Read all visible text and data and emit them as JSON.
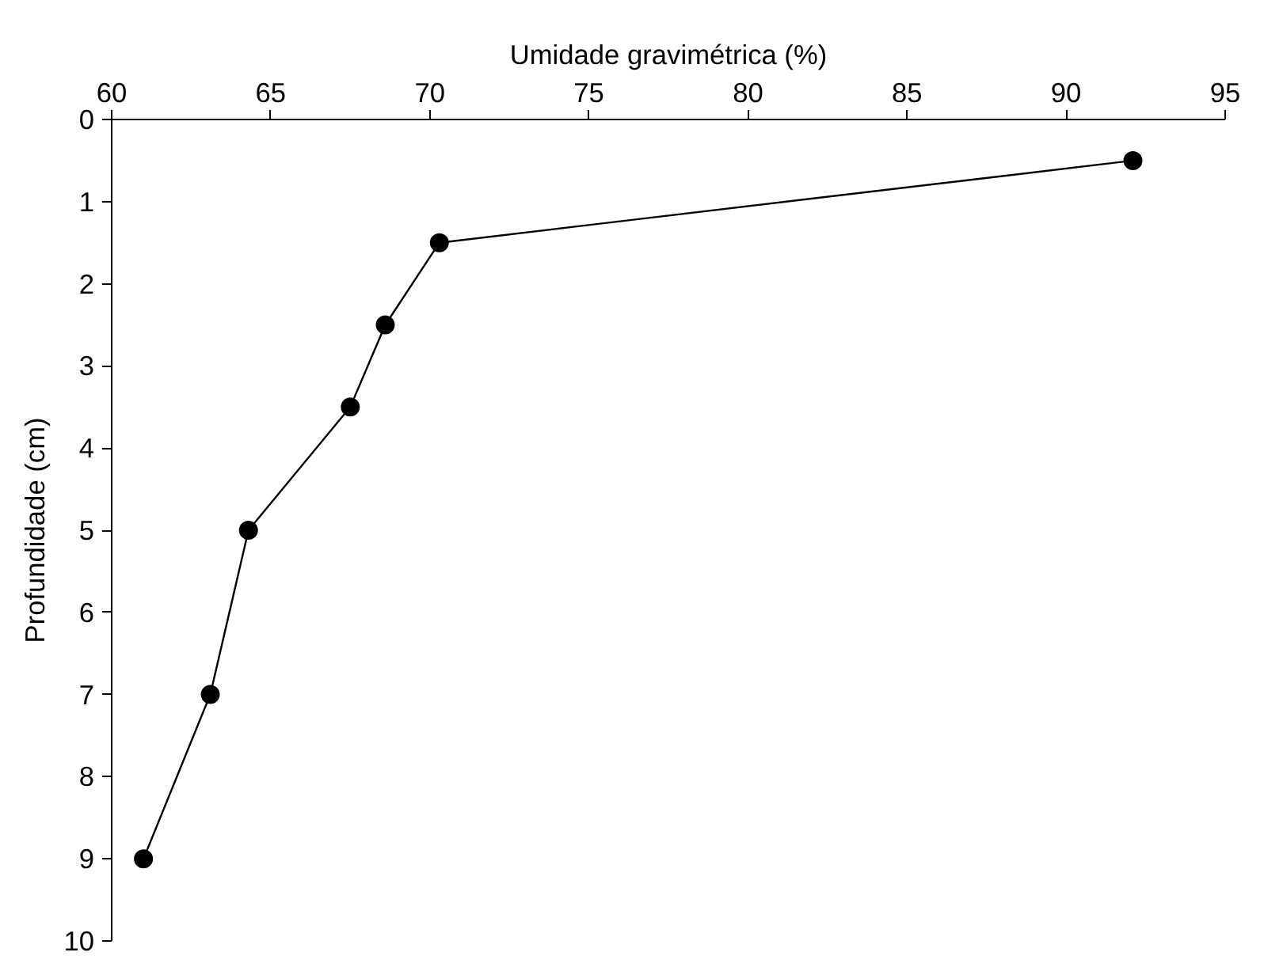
{
  "chart_data": {
    "type": "line",
    "xlabel": "Umidade gravimétrica (%)",
    "ylabel": "Profundidade (cm)",
    "x": [
      92.1,
      70.3,
      68.6,
      67.5,
      64.3,
      63.1,
      61.0
    ],
    "series": [
      {
        "color": "#000000",
        "values": [
          0.5,
          1.5,
          2.5,
          3.5,
          5,
          7,
          9
        ]
      }
    ],
    "xlim": [
      60,
      95
    ],
    "xticks": [
      60,
      65,
      70,
      75,
      80,
      85,
      90,
      95
    ],
    "ylim": [
      10,
      0
    ],
    "yticks": [
      0,
      1,
      2,
      3,
      4,
      5,
      6,
      7,
      8,
      9,
      10
    ],
    "grid": false,
    "marker": "circle",
    "line_style": "solid"
  }
}
